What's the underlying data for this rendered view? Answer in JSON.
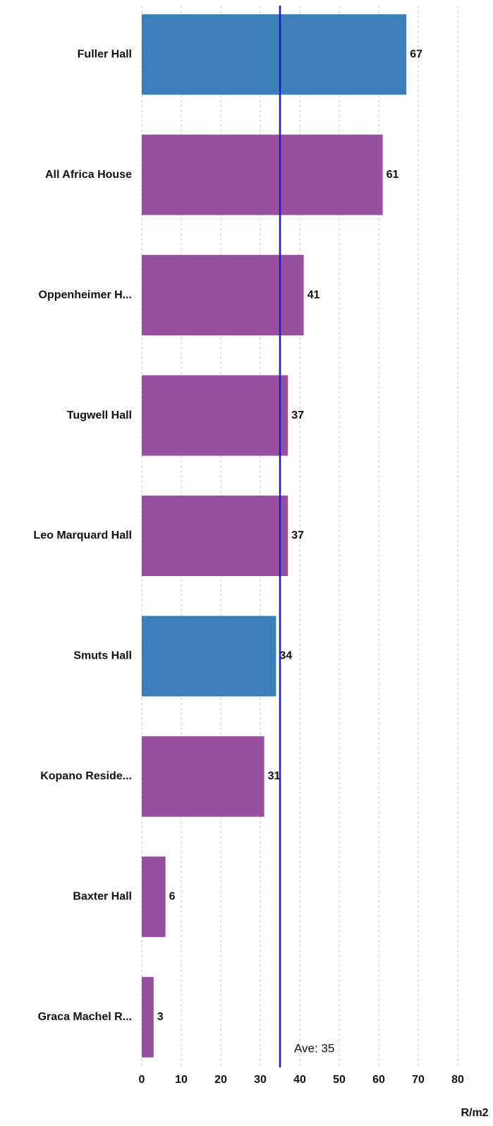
{
  "chart_data": {
    "type": "bar",
    "orientation": "horizontal",
    "categories": [
      "Fuller Hall",
      "All Africa House",
      "Oppenheimer H...",
      "Tugwell Hall",
      "Leo Marquard Hall",
      "Smuts Hall",
      "Kopano Reside...",
      "Baxter Hall",
      "Graca Machel R..."
    ],
    "values": [
      67,
      61,
      41,
      37,
      37,
      34,
      31,
      6,
      3
    ],
    "colors": [
      "#3a7fb8",
      "#974fa0",
      "#974fa0",
      "#974fa0",
      "#974fa0",
      "#3a7fb8",
      "#974fa0",
      "#974fa0",
      "#974fa0"
    ],
    "xlim": [
      0,
      80
    ],
    "xticks": [
      0,
      10,
      20,
      30,
      40,
      50,
      60,
      70,
      80
    ],
    "grid": true,
    "x_label": "R/m2",
    "average": {
      "value": 35,
      "label": "Ave: 35",
      "color": "#1a1ac8"
    }
  }
}
